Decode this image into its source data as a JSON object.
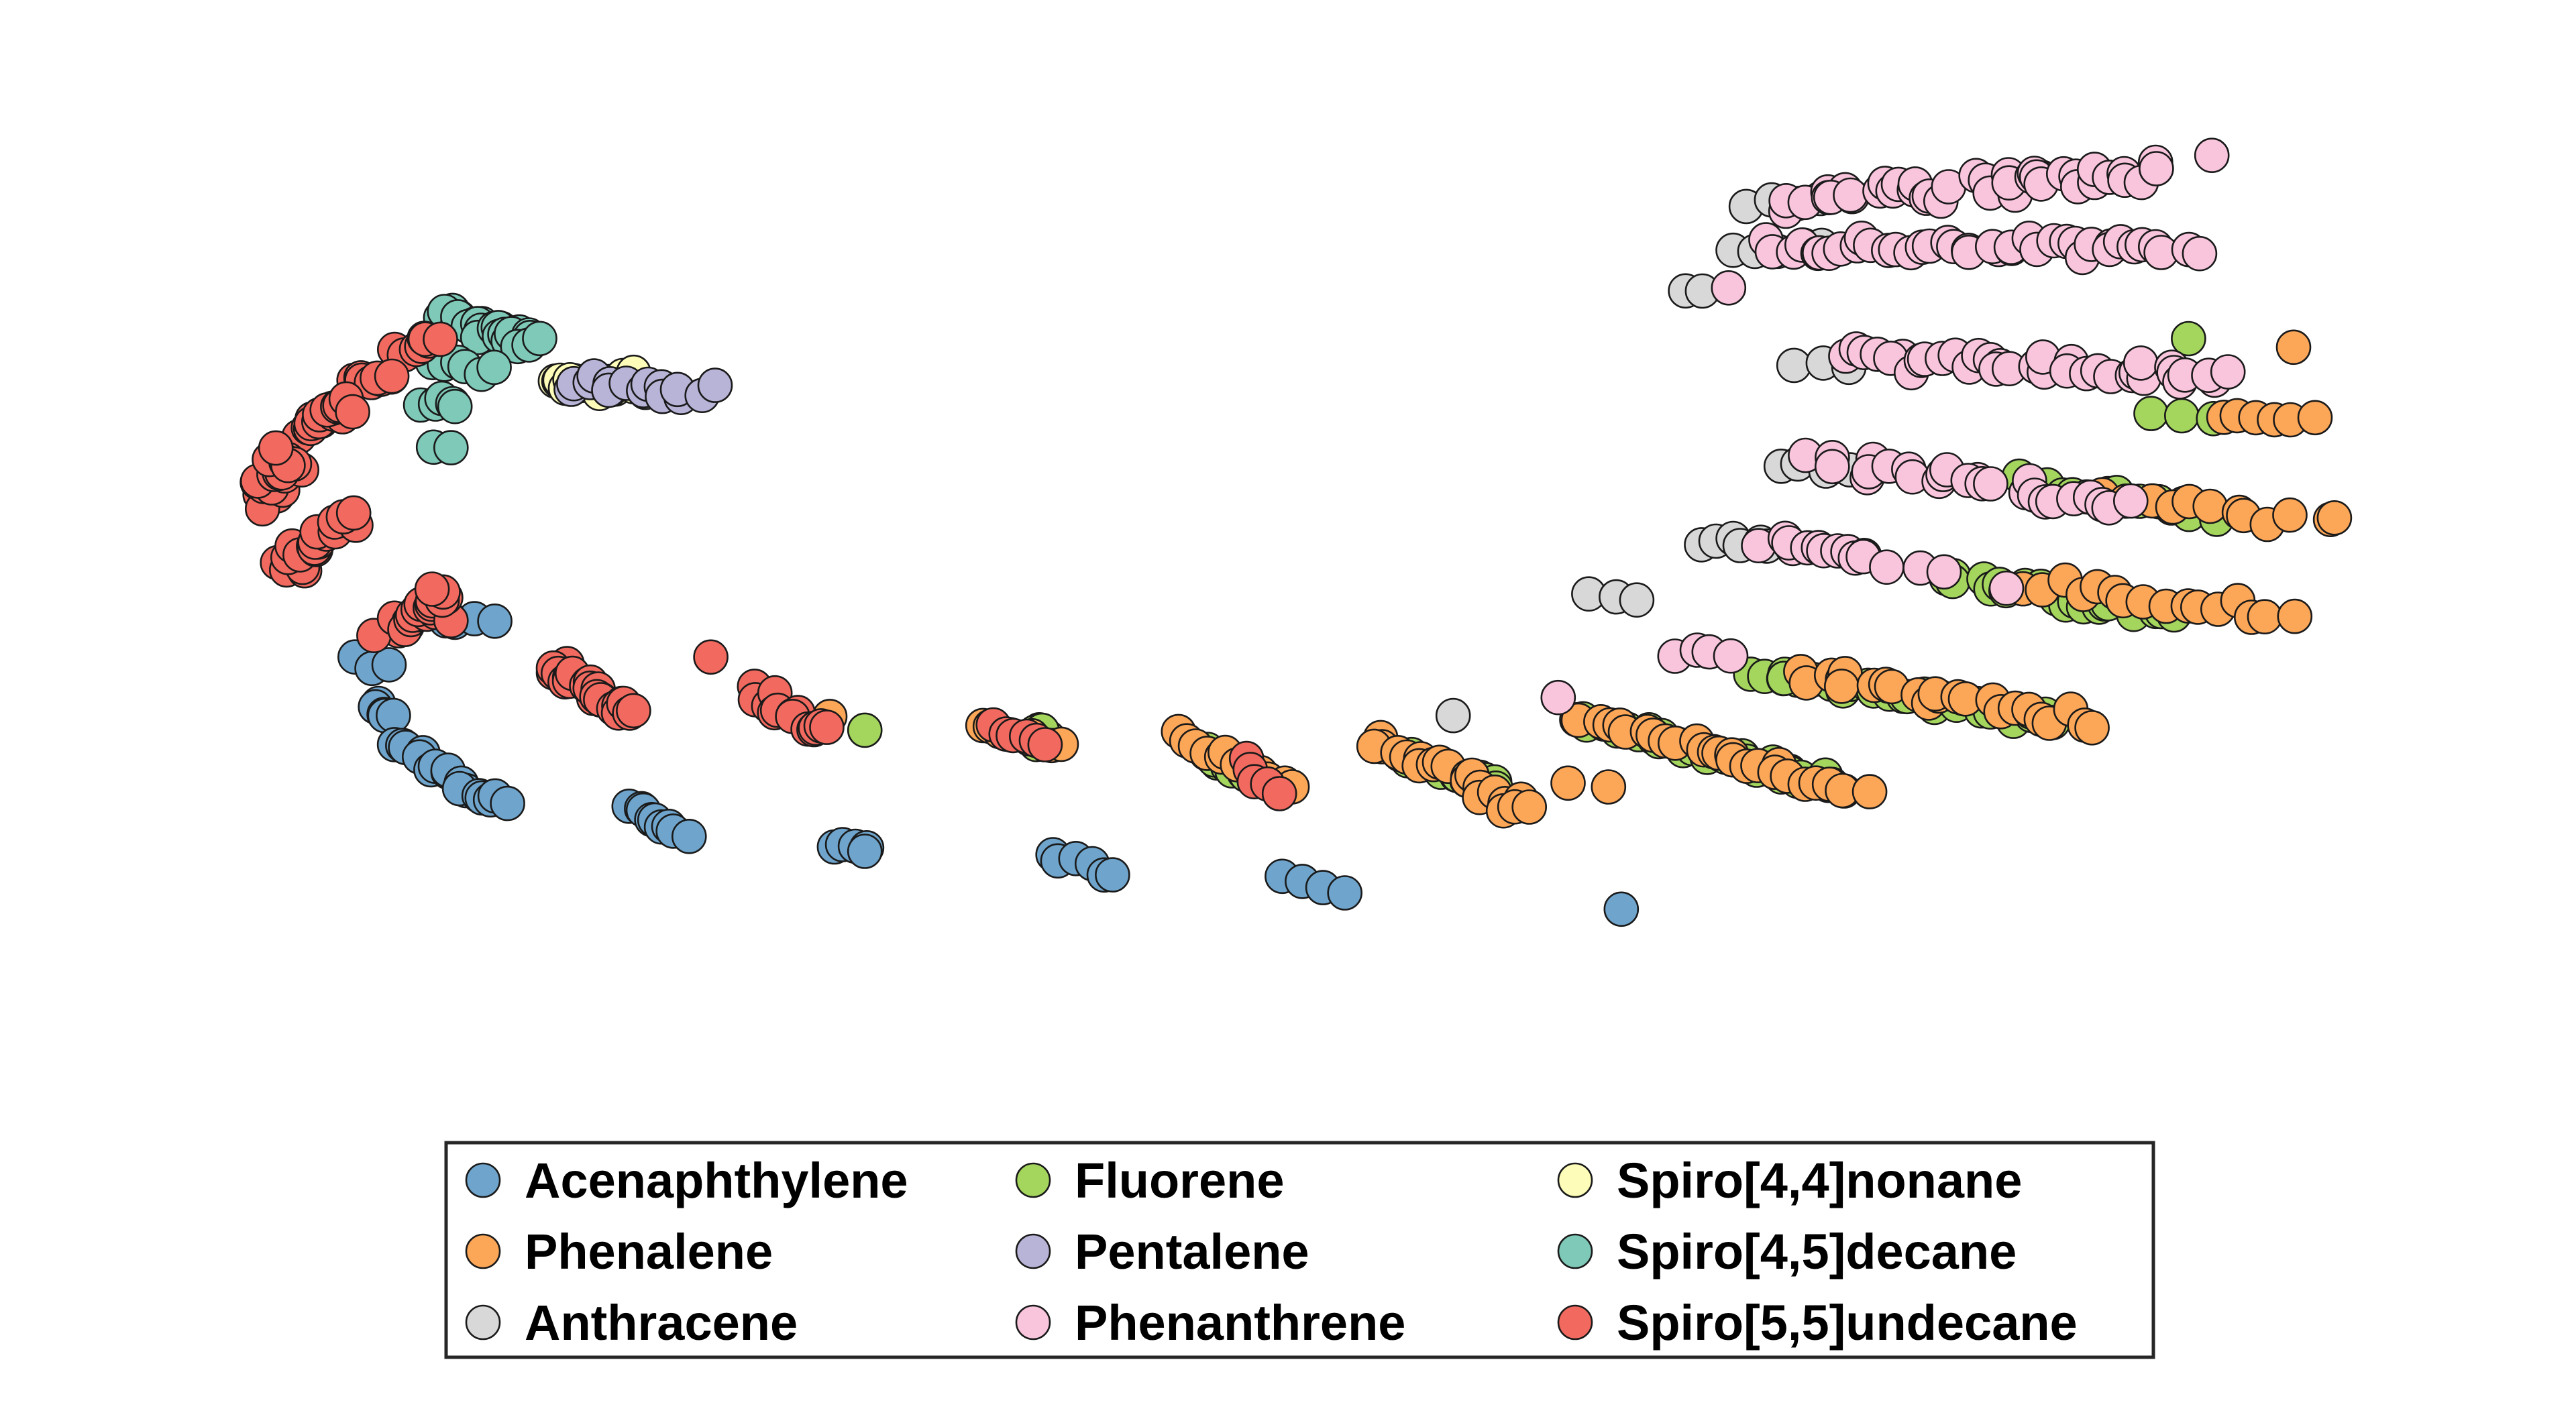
{
  "chart_data": {
    "type": "scatter",
    "title": "",
    "xlabel": "",
    "ylabel": "",
    "axes_visible": false,
    "grid": false,
    "marker": "circle",
    "marker_edge_color": "#1a1a1a",
    "xlim": [
      0,
      100
    ],
    "ylim": [
      0,
      60
    ],
    "legend": {
      "position": "lower-center",
      "columns": 3,
      "frame": true
    },
    "series": [
      {
        "name": "Acenaphthylene",
        "color": "#6fa5cc",
        "clusters": [
          {
            "x": [
              12.8,
              15.4
            ],
            "y": [
              57.5,
              57.5
            ],
            "n": 4,
            "spread": 0.4
          },
          {
            "x": [
              9.2,
              11.2
            ],
            "y": [
              52.5,
              51.9
            ],
            "n": 3,
            "spread": 0.4
          },
          {
            "x": [
              10.2,
              11.0
            ],
            "y": [
              47.0,
              46.2
            ],
            "n": 5,
            "spread": 0.4
          },
          {
            "x": [
              11.2,
              13.5
            ],
            "y": [
              43.0,
              39.4
            ],
            "n": 9,
            "spread": 0.5
          },
          {
            "x": [
              13.8,
              15.9
            ],
            "y": [
              38.2,
              35.8
            ],
            "n": 8,
            "spread": 0.5
          },
          {
            "x": [
              21.2,
              23.7
            ],
            "y": [
              35.3,
              32.8
            ],
            "n": 9,
            "spread": 0.4
          },
          {
            "x": [
              30.1,
              31.5
            ],
            "y": [
              31.3,
              30.1
            ],
            "n": 5,
            "spread": 0.3
          },
          {
            "x": [
              39.2,
              42.1
            ],
            "y": [
              30.0,
              27.7
            ],
            "n": 6,
            "spread": 0.3
          },
          {
            "x": [
              49.3,
              51.9
            ],
            "y": [
              27.5,
              25.5
            ],
            "n": 4,
            "spread": 0.2
          },
          {
            "x": [
              63.7,
              63.7
            ],
            "y": [
              23.7,
              23.7
            ],
            "n": 1,
            "spread": 0.0
          }
        ]
      },
      {
        "name": "Fluorene",
        "color": "#a4d65e",
        "clusters": [
          {
            "x": [
              88.0,
              88.0
            ],
            "y": [
              90.0,
              90.0
            ],
            "n": 1,
            "spread": 0.0
          },
          {
            "x": [
              86.5,
              89.1
            ],
            "y": [
              81.5,
              80.8
            ],
            "n": 3,
            "spread": 0.3
          },
          {
            "x": [
              80.6,
              89.0
            ],
            "y": [
              73.6,
              69.6
            ],
            "n": 14,
            "spread": 0.5
          },
          {
            "x": [
              77.3,
              87.3
            ],
            "y": [
              62.5,
              57.6
            ],
            "n": 20,
            "spread": 0.5
          },
          {
            "x": [
              69.3,
              82.2
            ],
            "y": [
              51.3,
              45.8
            ],
            "n": 28,
            "spread": 0.5
          },
          {
            "x": [
              61.8,
              73.1
            ],
            "y": [
              45.7,
              38.1
            ],
            "n": 30,
            "spread": 0.5
          },
          {
            "x": [
              54.6,
              58.6
            ],
            "y": [
              41.4,
              37.4
            ],
            "n": 16,
            "spread": 0.4
          },
          {
            "x": [
              45.7,
              47.7
            ],
            "y": [
              42.2,
              39.3
            ],
            "n": 10,
            "spread": 0.4
          },
          {
            "x": [
              38.7,
              39.0
            ],
            "y": [
              44.1,
              44.1
            ],
            "n": 6,
            "spread": 0.3
          },
          {
            "x": [
              31.3,
              31.3
            ],
            "y": [
              44.5,
              44.5
            ],
            "n": 1,
            "spread": 0.0
          }
        ]
      },
      {
        "name": "Spiro[4,4]nonane",
        "color": "#fdfcb8",
        "clusters": [
          {
            "x": [
              18.0,
              21.0
            ],
            "y": [
              85.4,
              83.8
            ],
            "n": 15,
            "spread": 0.5
          },
          {
            "x": [
              21.0,
              21.4
            ],
            "y": [
              85.8,
              85.8
            ],
            "n": 2,
            "spread": 0.2
          }
        ]
      },
      {
        "name": "Phenalene",
        "color": "#fca657",
        "clusters": [
          {
            "x": [
              92.5,
              92.5
            ],
            "y": [
              89.0,
              89.0
            ],
            "n": 1,
            "spread": 0.0
          },
          {
            "x": [
              89.4,
              93.4
            ],
            "y": [
              81.1,
              80.6
            ],
            "n": 6,
            "spread": 0.3
          },
          {
            "x": [
              84.2,
              94.6
            ],
            "y": [
              71.1,
              69.0
            ],
            "n": 12,
            "spread": 0.5
          },
          {
            "x": [
              81.0,
              92.2
            ],
            "y": [
              61.2,
              57.7
            ],
            "n": 16,
            "spread": 0.5
          },
          {
            "x": [
              71.3,
              83.6
            ],
            "y": [
              51.2,
              45.3
            ],
            "n": 26,
            "spread": 0.5
          },
          {
            "x": [
              62.3,
              74.1
            ],
            "y": [
              45.8,
              37.3
            ],
            "n": 26,
            "spread": 0.5
          },
          {
            "x": [
              53.1,
              59.8
            ],
            "y": [
              43.4,
              35.1
            ],
            "n": 22,
            "spread": 0.5
          },
          {
            "x": [
              44.5,
              49.8
            ],
            "y": [
              44.1,
              38.0
            ],
            "n": 12,
            "spread": 0.4
          },
          {
            "x": [
              36.2,
              39.6
            ],
            "y": [
              45.2,
              42.3
            ],
            "n": 8,
            "spread": 0.4
          },
          {
            "x": [
              29.8,
              29.8
            ],
            "y": [
              46.1,
              46.1
            ],
            "n": 1,
            "spread": 0.0
          },
          {
            "x": [
              61.5,
              63.0
            ],
            "y": [
              38.5,
              37.9
            ],
            "n": 2,
            "spread": 0.2
          }
        ]
      },
      {
        "name": "Pentalene",
        "color": "#b8b4d8",
        "clusters": [
          {
            "x": [
              19.0,
              24.4
            ],
            "y": [
              85.1,
              83.6
            ],
            "n": 16,
            "spread": 0.5
          }
        ]
      },
      {
        "name": "Spiro[4,5]decane",
        "color": "#7ec9b8",
        "clusters": [
          {
            "x": [
              12.9,
              17.2
            ],
            "y": [
              93.0,
              89.2
            ],
            "n": 30,
            "spread": 0.5
          },
          {
            "x": [
              12.9,
              15.2
            ],
            "y": [
              87.2,
              86.6
            ],
            "n": 6,
            "spread": 0.3
          },
          {
            "x": [
              12.4,
              14.0
            ],
            "y": [
              82.4,
              82.2
            ],
            "n": 5,
            "spread": 0.3
          },
          {
            "x": [
              12.7,
              13.5
            ],
            "y": [
              77.7,
              77.5
            ],
            "n": 2,
            "spread": 0.2
          }
        ]
      },
      {
        "name": "Anthracene",
        "color": "#d8d8d8",
        "clusters": [
          {
            "x": [
              69.0,
              72.2
            ],
            "y": [
              105.6,
              106.0
            ],
            "n": 4,
            "spread": 0.3
          },
          {
            "x": [
              68.4,
              72.4
            ],
            "y": [
              100.4,
              100.5
            ],
            "n": 5,
            "spread": 0.3
          },
          {
            "x": [
              66.4,
              67.3
            ],
            "y": [
              95.4,
              95.4
            ],
            "n": 2,
            "spread": 0.2
          },
          {
            "x": [
              71.1,
              73.6
            ],
            "y": [
              87.0,
              87.0
            ],
            "n": 3,
            "spread": 0.3
          },
          {
            "x": [
              70.7,
              73.4
            ],
            "y": [
              75.1,
              74.8
            ],
            "n": 5,
            "spread": 0.3
          },
          {
            "x": [
              67.2,
              70.0
            ],
            "y": [
              66.4,
              66.0
            ],
            "n": 6,
            "spread": 0.3
          },
          {
            "x": [
              62.3,
              64.4
            ],
            "y": [
              60.5,
              59.6
            ],
            "n": 3,
            "spread": 0.2
          },
          {
            "x": [
              56.5,
              56.5
            ],
            "y": [
              46.2,
              46.2
            ],
            "n": 1,
            "spread": 0.0
          }
        ]
      },
      {
        "name": "Phenanthrene",
        "color": "#f9c5dd",
        "clusters": [
          {
            "x": [
              71.0,
              87.1
            ],
            "y": [
              106.2,
              109.3
            ],
            "n": 42,
            "spread": 0.6
          },
          {
            "x": [
              70.0,
              88.2
            ],
            "y": [
              100.6,
              100.4
            ],
            "n": 40,
            "spread": 0.6
          },
          {
            "x": [
              89.0,
              89.0
            ],
            "y": [
              111.3,
              111.3
            ],
            "n": 1,
            "spread": 0.0
          },
          {
            "x": [
              68.3,
              68.3
            ],
            "y": [
              95.9,
              95.9
            ],
            "n": 1,
            "spread": 0.0
          },
          {
            "x": [
              73.3,
              89.8
            ],
            "y": [
              88.1,
              85.7
            ],
            "n": 36,
            "spread": 0.6
          },
          {
            "x": [
              72.0,
              85.2
            ],
            "y": [
              75.8,
              70.6
            ],
            "n": 26,
            "spread": 0.6
          },
          {
            "x": [
              70.0,
              74.3
            ],
            "y": [
              66.7,
              64.6
            ],
            "n": 12,
            "spread": 0.4
          },
          {
            "x": [
              75.3,
              77.5
            ],
            "y": [
              63.5,
              62.3
            ],
            "n": 3,
            "spread": 0.3
          },
          {
            "x": [
              80.2,
              80.2
            ],
            "y": [
              61.0,
              61.0
            ],
            "n": 1,
            "spread": 0.0
          },
          {
            "x": [
              66.1,
              68.3
            ],
            "y": [
              53.6,
              53.1
            ],
            "n": 4,
            "spread": 0.3
          },
          {
            "x": [
              61.0,
              61.0
            ],
            "y": [
              48.3,
              48.3
            ],
            "n": 1,
            "spread": 0.0
          }
        ]
      },
      {
        "name": "Spiro[5,5]undecane",
        "color": "#f26a5f",
        "clusters": [
          {
            "x": [
              11.3,
              13.0
            ],
            "y": [
              88.7,
              90.0
            ],
            "n": 8,
            "spread": 0.4
          },
          {
            "x": [
              9.5,
              11.1
            ],
            "y": [
              85.2,
              85.9
            ],
            "n": 8,
            "spread": 0.4
          },
          {
            "x": [
              7.3,
              9.3
            ],
            "y": [
              79.4,
              82.6
            ],
            "n": 20,
            "spread": 0.5
          },
          {
            "x": [
              5.5,
              6.7
            ],
            "y": [
              72.0,
              76.3
            ],
            "n": 25,
            "spread": 0.6
          },
          {
            "x": [
              6.5,
              9.0
            ],
            "y": [
              63.1,
              68.8
            ],
            "n": 22,
            "spread": 0.6
          },
          {
            "x": [
              10.7,
              13.6
            ],
            "y": [
              55.7,
              60.1
            ],
            "n": 24,
            "spread": 0.7
          },
          {
            "x": [
              18.0,
              21.2
            ],
            "y": [
              51.8,
              46.2
            ],
            "n": 26,
            "spread": 0.6
          },
          {
            "x": [
              24.7,
              24.7
            ],
            "y": [
              53.0,
              53.0
            ],
            "n": 1,
            "spread": 0.0
          },
          {
            "x": [
              26.5,
              29.8
            ],
            "y": [
              48.9,
              43.9
            ],
            "n": 14,
            "spread": 0.5
          },
          {
            "x": [
              36.9,
              39.0
            ],
            "y": [
              44.6,
              43.0
            ],
            "n": 6,
            "spread": 0.3
          },
          {
            "x": [
              47.6,
              48.9
            ],
            "y": [
              41.0,
              37.3
            ],
            "n": 5,
            "spread": 0.3
          }
        ]
      }
    ]
  }
}
